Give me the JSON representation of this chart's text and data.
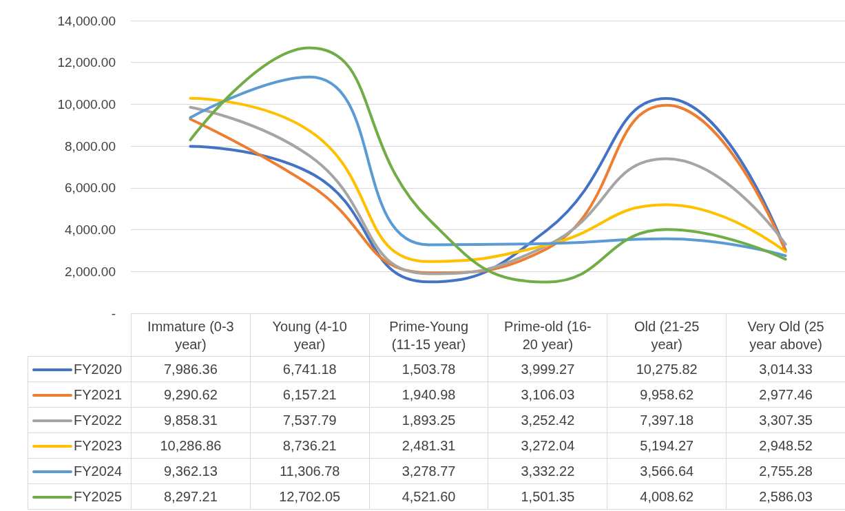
{
  "chart_data": {
    "type": "line",
    "categories": [
      "Immature (0-3 year)",
      "Young (4-10 year)",
      "Prime-Young (11-15 year)",
      "Prime-old (16-20 year)",
      "Old (21-25 year)",
      "Very Old (25 year above)"
    ],
    "series": [
      {
        "name": "FY2020",
        "color": "#4472c4",
        "values": [
          7986.36,
          6741.18,
          1503.78,
          3999.27,
          10275.82,
          3014.33
        ],
        "value_labels": [
          "7,986.36",
          "6,741.18",
          "1,503.78",
          "3,999.27",
          "10,275.82",
          "3,014.33"
        ]
      },
      {
        "name": "FY2021",
        "color": "#ed7d31",
        "values": [
          9290.62,
          6157.21,
          1940.98,
          3106.03,
          9958.62,
          2977.46
        ],
        "value_labels": [
          "9,290.62",
          "6,157.21",
          "1,940.98",
          "3,106.03",
          "9,958.62",
          "2,977.46"
        ]
      },
      {
        "name": "FY2022",
        "color": "#a5a5a5",
        "values": [
          9858.31,
          7537.79,
          1893.25,
          3252.42,
          7397.18,
          3307.35
        ],
        "value_labels": [
          "9,858.31",
          "7,537.79",
          "1,893.25",
          "3,252.42",
          "7,397.18",
          "3,307.35"
        ]
      },
      {
        "name": "FY2023",
        "color": "#ffc000",
        "values": [
          10286.86,
          8736.21,
          2481.31,
          3272.04,
          5194.27,
          2948.52
        ],
        "value_labels": [
          "10,286.86",
          "8,736.21",
          "2,481.31",
          "3,272.04",
          "5,194.27",
          "2,948.52"
        ]
      },
      {
        "name": "FY2024",
        "color": "#5b9bd5",
        "values": [
          9362.13,
          11306.78,
          3278.77,
          3332.22,
          3566.64,
          2755.28
        ],
        "value_labels": [
          "9,362.13",
          "11,306.78",
          "3,278.77",
          "3,332.22",
          "3,566.64",
          "2,755.28"
        ]
      },
      {
        "name": "FY2025",
        "color": "#70ad47",
        "values": [
          8297.21,
          12702.05,
          4521.6,
          1501.35,
          4008.62,
          2586.03
        ],
        "value_labels": [
          "8,297.21",
          "12,702.05",
          "4,521.60",
          "1,501.35",
          "4,008.62",
          "2,586.03"
        ]
      }
    ],
    "ylim": [
      0,
      14000
    ],
    "yticks": [
      {
        "value": 0,
        "label": "-"
      },
      {
        "value": 2000,
        "label": "2,000.00"
      },
      {
        "value": 4000,
        "label": "4,000.00"
      },
      {
        "value": 6000,
        "label": "6,000.00"
      },
      {
        "value": 8000,
        "label": "8,000.00"
      },
      {
        "value": 10000,
        "label": "10,000.00"
      },
      {
        "value": 12000,
        "label": "12,000.00"
      },
      {
        "value": 14000,
        "label": "14,000.00"
      }
    ],
    "grid": "y",
    "legend": "bottom",
    "marker": "none",
    "line_style": "solid"
  }
}
